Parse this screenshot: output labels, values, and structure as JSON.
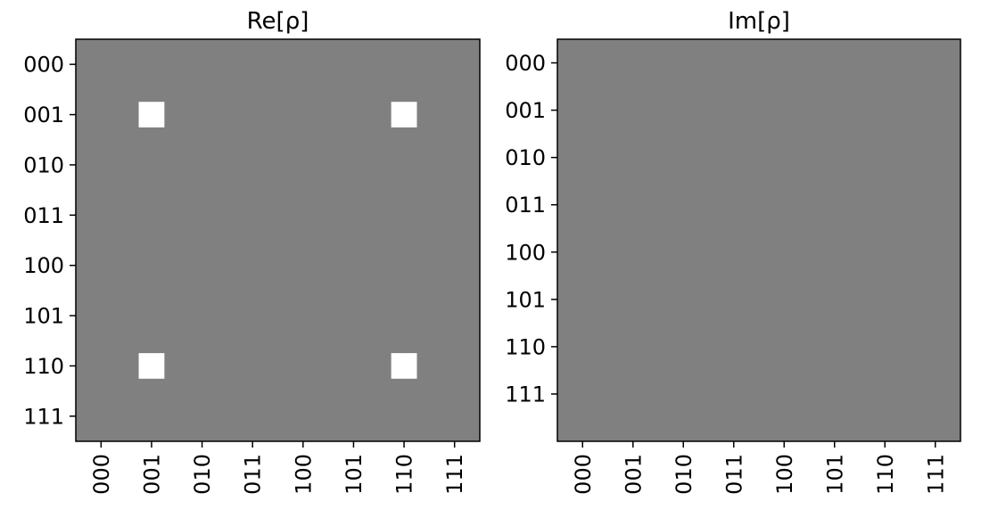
{
  "chart_data": [
    {
      "type": "heatmap",
      "title": "Re[ρ]",
      "rows": [
        "000",
        "001",
        "010",
        "011",
        "100",
        "101",
        "110",
        "111"
      ],
      "cols": [
        "000",
        "001",
        "010",
        "011",
        "100",
        "101",
        "110",
        "111"
      ],
      "background_value": 0,
      "cells": [
        {
          "row": "001",
          "col": "001",
          "value": 0.5
        },
        {
          "row": "001",
          "col": "110",
          "value": 0.5
        },
        {
          "row": "110",
          "col": "001",
          "value": 0.5
        },
        {
          "row": "110",
          "col": "110",
          "value": 0.5
        }
      ],
      "colors": {
        "zero": "#808080",
        "positive": "#ffffff"
      },
      "ticks_y": "left",
      "ticks_x": "bottom-rotated"
    },
    {
      "type": "heatmap",
      "title": "Im[ρ]",
      "rows": [
        "000",
        "001",
        "010",
        "011",
        "100",
        "101",
        "110",
        "111"
      ],
      "cols": [
        "000",
        "001",
        "010",
        "011",
        "100",
        "101",
        "110",
        "111"
      ],
      "background_value": 0,
      "cells": [],
      "colors": {
        "zero": "#808080",
        "positive": "#ffffff"
      },
      "ticks_y": "left",
      "ticks_x": "bottom-rotated"
    }
  ]
}
